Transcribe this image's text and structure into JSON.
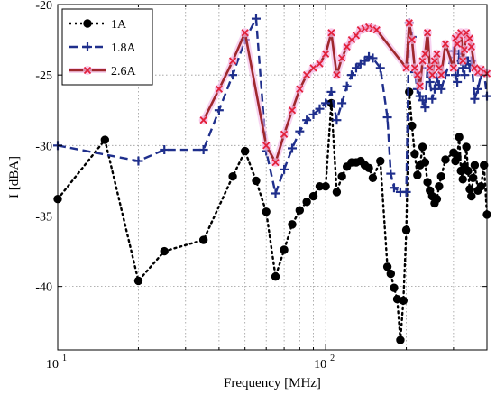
{
  "chart_data": {
    "type": "line",
    "xlabel": "Frequency [MHz]",
    "ylabel": "I [dBA]",
    "xscale": "log",
    "xlim": [
      10,
      400
    ],
    "ylim": [
      -44.5,
      -20
    ],
    "x_ticks": [
      {
        "value": 10,
        "base": "10",
        "exp": "1"
      },
      {
        "value": 100,
        "base": "10",
        "exp": "2"
      }
    ],
    "y_ticks": [
      -20,
      -25,
      -30,
      -35,
      -40
    ],
    "grid": true,
    "legend_position": "top-left",
    "series": [
      {
        "name": "1A",
        "color": "#000000",
        "line_style": "dotted",
        "marker": "circle",
        "x": [
          10,
          15,
          20,
          25,
          35,
          45,
          50,
          55,
          60,
          65,
          70,
          75,
          80,
          85,
          90,
          95,
          100,
          105,
          110,
          115,
          120,
          125,
          130,
          135,
          140,
          145,
          150,
          160,
          170,
          175,
          180,
          185,
          190,
          195,
          200,
          205,
          210,
          215,
          220,
          225,
          230,
          235,
          240,
          245,
          250,
          255,
          260,
          265,
          270,
          280,
          300,
          305,
          310,
          315,
          320,
          325,
          330,
          335,
          340,
          345,
          350,
          355,
          360,
          370,
          380,
          390,
          400
        ],
        "y": [
          -33.8,
          -29.6,
          -39.6,
          -37.5,
          -36.7,
          -32.2,
          -30.4,
          -32.5,
          -34.7,
          -39.3,
          -37.4,
          -35.6,
          -34.6,
          -34.0,
          -33.6,
          -32.9,
          -32.9,
          -27.0,
          -33.3,
          -32.2,
          -31.5,
          -31.2,
          -31.2,
          -31.1,
          -31.4,
          -31.6,
          -32.3,
          -31.1,
          -38.6,
          -39.1,
          -40.1,
          -40.9,
          -43.8,
          -41.0,
          -36.0,
          -26.2,
          -28.6,
          -30.6,
          -32.1,
          -31.4,
          -30.1,
          -31.2,
          -32.6,
          -33.2,
          -33.6,
          -34.1,
          -33.8,
          -32.9,
          -32.2,
          -31.0,
          -30.5,
          -31.1,
          -30.8,
          -29.4,
          -31.8,
          -32.4,
          -31.5,
          -30.1,
          -31.8,
          -33.1,
          -33.6,
          -32.3,
          -31.4,
          -33.2,
          -32.9,
          -31.4,
          -34.9
        ]
      },
      {
        "name": "1.8A",
        "color": "#1f2f8c",
        "line_style": "dashed",
        "marker": "plus",
        "x": [
          10,
          20,
          25,
          35,
          40,
          45,
          50,
          55,
          60,
          65,
          70,
          75,
          80,
          85,
          90,
          95,
          100,
          105,
          110,
          115,
          120,
          125,
          130,
          135,
          140,
          145,
          150,
          160,
          170,
          175,
          180,
          190,
          200,
          205,
          210,
          215,
          220,
          225,
          230,
          235,
          240,
          245,
          250,
          255,
          260,
          265,
          270,
          280,
          300,
          305,
          310,
          315,
          320,
          325,
          330,
          335,
          340,
          345,
          350,
          360,
          370,
          380,
          390,
          400
        ],
        "y": [
          -30.0,
          -31.1,
          -30.3,
          -30.3,
          -27.5,
          -25.0,
          -22.5,
          -21.0,
          -30.4,
          -33.4,
          -31.7,
          -30.2,
          -29.0,
          -28.2,
          -27.8,
          -27.4,
          -27.0,
          -26.2,
          -28.2,
          -27.0,
          -25.8,
          -25.0,
          -24.5,
          -24.2,
          -24.0,
          -23.7,
          -23.8,
          -24.5,
          -28.0,
          -32.0,
          -33.0,
          -33.3,
          -33.3,
          -21.3,
          -22.3,
          -24.8,
          -26.0,
          -26.5,
          -26.8,
          -27.3,
          -24.5,
          -25.5,
          -26.7,
          -26.0,
          -25.2,
          -25.7,
          -26.0,
          -25.0,
          -23.3,
          -25.0,
          -25.5,
          -23.5,
          -24.0,
          -24.5,
          -25.0,
          -24.0,
          -24.0,
          -24.5,
          -24.0,
          -26.7,
          -26.0,
          -25.0,
          -24.8,
          -26.5
        ]
      },
      {
        "name": "2.6A",
        "color": "#a0282d",
        "line_style": "solid",
        "marker": "x",
        "x": [
          35,
          40,
          45,
          50,
          60,
          65,
          70,
          75,
          80,
          85,
          90,
          95,
          100,
          105,
          110,
          115,
          120,
          125,
          130,
          135,
          140,
          145,
          150,
          155,
          200,
          205,
          210,
          215,
          220,
          225,
          230,
          235,
          240,
          245,
          250,
          255,
          260,
          265,
          270,
          280,
          300,
          305,
          310,
          315,
          320,
          325,
          330,
          335,
          340,
          345,
          350,
          360,
          370,
          380,
          390,
          400
        ],
        "y": [
          -28.2,
          -26.0,
          -24.0,
          -22.0,
          -30.0,
          -31.2,
          -29.2,
          -27.5,
          -26.0,
          -25.0,
          -24.5,
          -24.2,
          -23.5,
          -22.0,
          -25.0,
          -23.8,
          -23.0,
          -22.5,
          -22.2,
          -21.8,
          -21.7,
          -21.6,
          -21.7,
          -21.8,
          -24.5,
          -21.3,
          -22.5,
          -24.5,
          -25.0,
          -25.8,
          -24.0,
          -23.5,
          -22.0,
          -24.5,
          -25.0,
          -24.0,
          -23.5,
          -24.5,
          -25.0,
          -22.8,
          -24.5,
          -22.4,
          -22.8,
          -22.2,
          -22.0,
          -24.0,
          -23.2,
          -22.0,
          -22.5,
          -22.4,
          -23.0,
          -24.5,
          -24.8,
          -24.6,
          -24.8,
          -24.9
        ]
      }
    ]
  }
}
